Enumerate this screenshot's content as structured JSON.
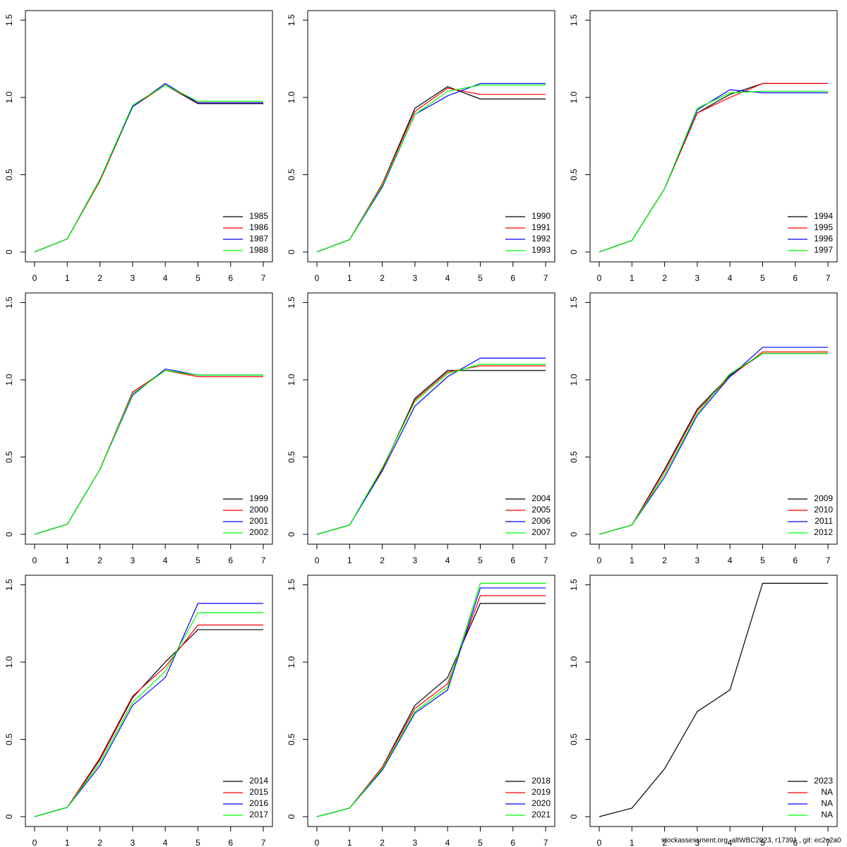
{
  "chart_data": [
    {
      "type": "line",
      "x": [
        0,
        1,
        2,
        3,
        4,
        5,
        6,
        7
      ],
      "xlim": [
        -0.28,
        7.28
      ],
      "ylim": [
        -0.064,
        1.562
      ],
      "xticks": [
        0,
        1,
        2,
        3,
        4,
        5,
        6,
        7
      ],
      "yticks": [
        0,
        {
          "value": 0.5,
          "label": "0.5"
        },
        {
          "value": 1,
          "label": "1.0"
        },
        1.5
      ],
      "legend": "bottom-right",
      "series": [
        {
          "name": "1985",
          "color": "#000000",
          "values": [
            0,
            0.085,
            0.46,
            0.94,
            1.08,
            0.96,
            0.96,
            0.96
          ]
        },
        {
          "name": "1986",
          "color": "#ff0000",
          "values": [
            0,
            0.085,
            0.46,
            0.94,
            1.08,
            0.965,
            0.965,
            0.965
          ]
        },
        {
          "name": "1987",
          "color": "#0000ff",
          "values": [
            0,
            0.085,
            0.47,
            0.94,
            1.09,
            0.965,
            0.965,
            0.965
          ]
        },
        {
          "name": "1988",
          "color": "#00ff00",
          "values": [
            0,
            0.085,
            0.47,
            0.95,
            1.08,
            0.975,
            0.975,
            0.975
          ]
        }
      ]
    },
    {
      "type": "line",
      "x": [
        0,
        1,
        2,
        3,
        4,
        5,
        6,
        7
      ],
      "xlim": [
        -0.28,
        7.28
      ],
      "ylim": [
        -0.064,
        1.562
      ],
      "xticks": [
        0,
        1,
        2,
        3,
        4,
        5,
        6,
        7
      ],
      "yticks": [
        0,
        {
          "value": 0.5,
          "label": "0.5"
        },
        {
          "value": 1,
          "label": "1.0"
        },
        1.5
      ],
      "legend": "bottom-right",
      "series": [
        {
          "name": "1990",
          "color": "#000000",
          "values": [
            0,
            0.08,
            0.44,
            0.93,
            1.07,
            0.99,
            0.99,
            0.99
          ]
        },
        {
          "name": "1991",
          "color": "#ff0000",
          "values": [
            0,
            0.08,
            0.44,
            0.91,
            1.06,
            1.02,
            1.02,
            1.02
          ]
        },
        {
          "name": "1992",
          "color": "#0000ff",
          "values": [
            0,
            0.08,
            0.42,
            0.89,
            1.01,
            1.09,
            1.09,
            1.09
          ]
        },
        {
          "name": "1993",
          "color": "#00ff00",
          "values": [
            0,
            0.08,
            0.43,
            0.89,
            1.04,
            1.08,
            1.08,
            1.08
          ]
        }
      ]
    },
    {
      "type": "line",
      "x": [
        0,
        1,
        2,
        3,
        4,
        5,
        6,
        7
      ],
      "xlim": [
        -0.28,
        7.28
      ],
      "ylim": [
        -0.064,
        1.562
      ],
      "xticks": [
        0,
        1,
        2,
        3,
        4,
        5,
        6,
        7
      ],
      "yticks": [
        0,
        {
          "value": 0.5,
          "label": "0.5"
        },
        {
          "value": 1,
          "label": "1.0"
        },
        1.5
      ],
      "legend": "bottom-right",
      "series": [
        {
          "name": "1994",
          "color": "#000000",
          "values": [
            0,
            0.075,
            0.41,
            0.9,
            1.02,
            1.09,
            1.09,
            1.09
          ]
        },
        {
          "name": "1995",
          "color": "#ff0000",
          "values": [
            0,
            0.075,
            0.41,
            0.9,
            1.0,
            1.09,
            1.09,
            1.09
          ]
        },
        {
          "name": "1996",
          "color": "#0000ff",
          "values": [
            0,
            0.075,
            0.41,
            0.92,
            1.05,
            1.03,
            1.03,
            1.03
          ]
        },
        {
          "name": "1997",
          "color": "#00ff00",
          "values": [
            0,
            0.075,
            0.41,
            0.93,
            1.03,
            1.04,
            1.04,
            1.04
          ]
        }
      ]
    },
    {
      "type": "line",
      "x": [
        0,
        1,
        2,
        3,
        4,
        5,
        6,
        7
      ],
      "xlim": [
        -0.28,
        7.28
      ],
      "ylim": [
        -0.064,
        1.562
      ],
      "xticks": [
        0,
        1,
        2,
        3,
        4,
        5,
        6,
        7
      ],
      "yticks": [
        0,
        {
          "value": 0.5,
          "label": "0.5"
        },
        {
          "value": 1,
          "label": "1.0"
        },
        1.5
      ],
      "legend": "bottom-right",
      "series": [
        {
          "name": "1999",
          "color": "#000000",
          "values": [
            0,
            0.065,
            0.42,
            0.92,
            1.06,
            1.03,
            1.03,
            1.03
          ]
        },
        {
          "name": "2000",
          "color": "#ff0000",
          "values": [
            0,
            0.065,
            0.42,
            0.92,
            1.06,
            1.02,
            1.02,
            1.02
          ]
        },
        {
          "name": "2001",
          "color": "#0000ff",
          "values": [
            0,
            0.065,
            0.42,
            0.9,
            1.07,
            1.03,
            1.03,
            1.03
          ]
        },
        {
          "name": "2002",
          "color": "#00ff00",
          "values": [
            0,
            0.065,
            0.42,
            0.91,
            1.06,
            1.03,
            1.03,
            1.03
          ]
        }
      ]
    },
    {
      "type": "line",
      "x": [
        0,
        1,
        2,
        3,
        4,
        5,
        6,
        7
      ],
      "xlim": [
        -0.28,
        7.28
      ],
      "ylim": [
        -0.064,
        1.562
      ],
      "xticks": [
        0,
        1,
        2,
        3,
        4,
        5,
        6,
        7
      ],
      "yticks": [
        0,
        {
          "value": 0.5,
          "label": "0.5"
        },
        {
          "value": 1,
          "label": "1.0"
        },
        1.5
      ],
      "legend": "bottom-right",
      "series": [
        {
          "name": "2004",
          "color": "#000000",
          "values": [
            0,
            0.06,
            0.42,
            0.88,
            1.06,
            1.06,
            1.06,
            1.06
          ]
        },
        {
          "name": "2005",
          "color": "#ff0000",
          "values": [
            0,
            0.06,
            0.42,
            0.87,
            1.05,
            1.09,
            1.09,
            1.09
          ]
        },
        {
          "name": "2006",
          "color": "#0000ff",
          "values": [
            0,
            0.06,
            0.41,
            0.83,
            1.02,
            1.14,
            1.14,
            1.14
          ]
        },
        {
          "name": "2007",
          "color": "#00ff00",
          "values": [
            0,
            0.06,
            0.43,
            0.86,
            1.04,
            1.1,
            1.1,
            1.1
          ]
        }
      ]
    },
    {
      "type": "line",
      "x": [
        0,
        1,
        2,
        3,
        4,
        5,
        6,
        7
      ],
      "xlim": [
        -0.28,
        7.28
      ],
      "ylim": [
        -0.064,
        1.562
      ],
      "xticks": [
        0,
        1,
        2,
        3,
        4,
        5,
        6,
        7
      ],
      "yticks": [
        0,
        {
          "value": 0.5,
          "label": "0.5"
        },
        {
          "value": 1,
          "label": "1.0"
        },
        1.5
      ],
      "legend": "bottom-right",
      "series": [
        {
          "name": "2009",
          "color": "#000000",
          "values": [
            0,
            0.06,
            0.42,
            0.81,
            1.03,
            1.17,
            1.17,
            1.17
          ]
        },
        {
          "name": "2010",
          "color": "#ff0000",
          "values": [
            0,
            0.06,
            0.41,
            0.8,
            1.02,
            1.18,
            1.18,
            1.18
          ]
        },
        {
          "name": "2011",
          "color": "#0000ff",
          "values": [
            0,
            0.06,
            0.37,
            0.77,
            1.02,
            1.21,
            1.21,
            1.21
          ]
        },
        {
          "name": "2012",
          "color": "#00ff00",
          "values": [
            0,
            0.06,
            0.39,
            0.78,
            1.04,
            1.17,
            1.17,
            1.17
          ]
        }
      ]
    },
    {
      "type": "line",
      "x": [
        0,
        1,
        2,
        3,
        4,
        5,
        6,
        7
      ],
      "xlim": [
        -0.28,
        7.28
      ],
      "ylim": [
        -0.064,
        1.562
      ],
      "xticks": [
        0,
        1,
        2,
        3,
        4,
        5,
        6,
        7
      ],
      "yticks": [
        0,
        {
          "value": 0.5,
          "label": "0.5"
        },
        {
          "value": 1,
          "label": "1.0"
        },
        1.5
      ],
      "legend": "bottom-right",
      "series": [
        {
          "name": "2014",
          "color": "#000000",
          "values": [
            0,
            0.06,
            0.37,
            0.77,
            1.0,
            1.21,
            1.21,
            1.21
          ]
        },
        {
          "name": "2015",
          "color": "#ff0000",
          "values": [
            0,
            0.06,
            0.38,
            0.78,
            0.97,
            1.24,
            1.24,
            1.24
          ]
        },
        {
          "name": "2016",
          "color": "#0000ff",
          "values": [
            0,
            0.06,
            0.33,
            0.72,
            0.9,
            1.38,
            1.38,
            1.38
          ]
        },
        {
          "name": "2017",
          "color": "#00ff00",
          "values": [
            0,
            0.06,
            0.35,
            0.74,
            0.94,
            1.32,
            1.32,
            1.32
          ]
        }
      ]
    },
    {
      "type": "line",
      "x": [
        0,
        1,
        2,
        3,
        4,
        5,
        6,
        7
      ],
      "xlim": [
        -0.28,
        7.28
      ],
      "ylim": [
        -0.064,
        1.562
      ],
      "xticks": [
        0,
        1,
        2,
        3,
        4,
        5,
        6,
        7
      ],
      "yticks": [
        0,
        {
          "value": 0.5,
          "label": "0.5"
        },
        {
          "value": 1,
          "label": "1.0"
        },
        1.5
      ],
      "legend": "bottom-right",
      "series": [
        {
          "name": "2018",
          "color": "#000000",
          "values": [
            0,
            0.055,
            0.32,
            0.72,
            0.9,
            1.38,
            1.38,
            1.38
          ]
        },
        {
          "name": "2019",
          "color": "#ff0000",
          "values": [
            0,
            0.055,
            0.32,
            0.7,
            0.86,
            1.43,
            1.43,
            1.43
          ]
        },
        {
          "name": "2020",
          "color": "#0000ff",
          "values": [
            0,
            0.055,
            0.3,
            0.67,
            0.82,
            1.48,
            1.48,
            1.48
          ]
        },
        {
          "name": "2021",
          "color": "#00ff00",
          "values": [
            0,
            0.055,
            0.31,
            0.68,
            0.84,
            1.51,
            1.51,
            1.51
          ]
        }
      ]
    },
    {
      "type": "line",
      "x": [
        0,
        1,
        2,
        3,
        4,
        5,
        6,
        7
      ],
      "xlim": [
        -0.28,
        7.28
      ],
      "ylim": [
        -0.064,
        1.562
      ],
      "xticks": [
        0,
        1,
        2,
        3,
        4,
        5,
        6,
        7
      ],
      "yticks": [
        0,
        {
          "value": 0.5,
          "label": "0.5"
        },
        {
          "value": 1,
          "label": "1.0"
        },
        1.5
      ],
      "legend": "bottom-right",
      "series": [
        {
          "name": "2023",
          "color": "#000000",
          "values": [
            0,
            0.055,
            0.31,
            0.68,
            0.82,
            1.51,
            1.51,
            1.51
          ]
        },
        {
          "name": "NA",
          "color": "#ff0000",
          "values": [
            null,
            null,
            null,
            null,
            null,
            null,
            null,
            null
          ]
        },
        {
          "name": "NA",
          "color": "#0000ff",
          "values": [
            null,
            null,
            null,
            null,
            null,
            null,
            null,
            null
          ]
        },
        {
          "name": "NA",
          "color": "#00ff00",
          "values": [
            null,
            null,
            null,
            null,
            null,
            null,
            null,
            null
          ]
        }
      ]
    }
  ],
  "footer": "stockassessment.org, altWBC2023, r17391 , git: ec2c2a0"
}
